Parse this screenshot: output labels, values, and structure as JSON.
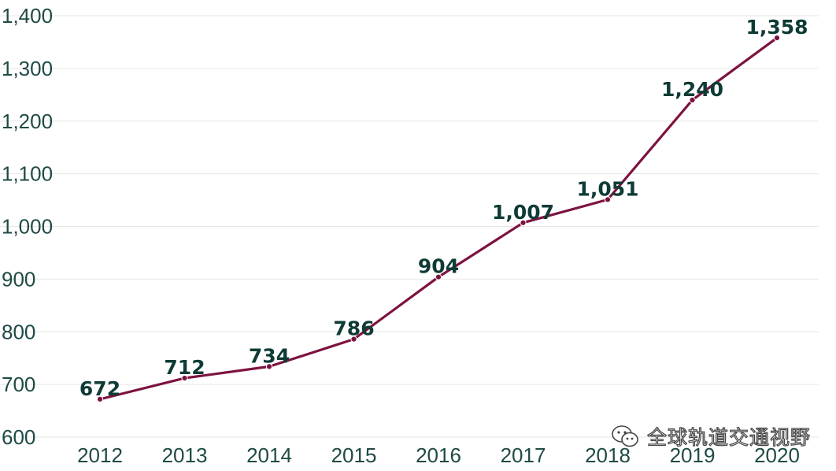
{
  "chart_data": {
    "type": "line",
    "title": "",
    "xlabel": "",
    "ylabel": "",
    "x": [
      "2012",
      "2013",
      "2014",
      "2015",
      "2016",
      "2017",
      "2018",
      "2019",
      "2020"
    ],
    "series": [
      {
        "values": [
          672,
          712,
          734,
          786,
          904,
          1007,
          1051,
          1240,
          1358
        ],
        "labels": [
          "672",
          "712",
          "734",
          "786",
          "904",
          "1,007",
          "1,051",
          "1,240",
          "1,358"
        ]
      }
    ],
    "y_ticks": [
      600,
      700,
      800,
      900,
      1000,
      1100,
      1200,
      1300,
      1400
    ],
    "y_tick_labels": [
      "600",
      "700",
      "800",
      "900",
      "1,000",
      "1,100",
      "1,200",
      "1,300",
      "1,400"
    ],
    "ylim": [
      600,
      1400
    ],
    "grid": true,
    "legend": "none",
    "colors": {
      "line": "#7d1240",
      "marker": "#7d1240",
      "label": "#0e3b36",
      "tick": "#1f4a45",
      "grid": "#e6e6e6"
    }
  },
  "watermark": {
    "text": "全球轨道交通视野",
    "icon": "wechat-icon"
  }
}
